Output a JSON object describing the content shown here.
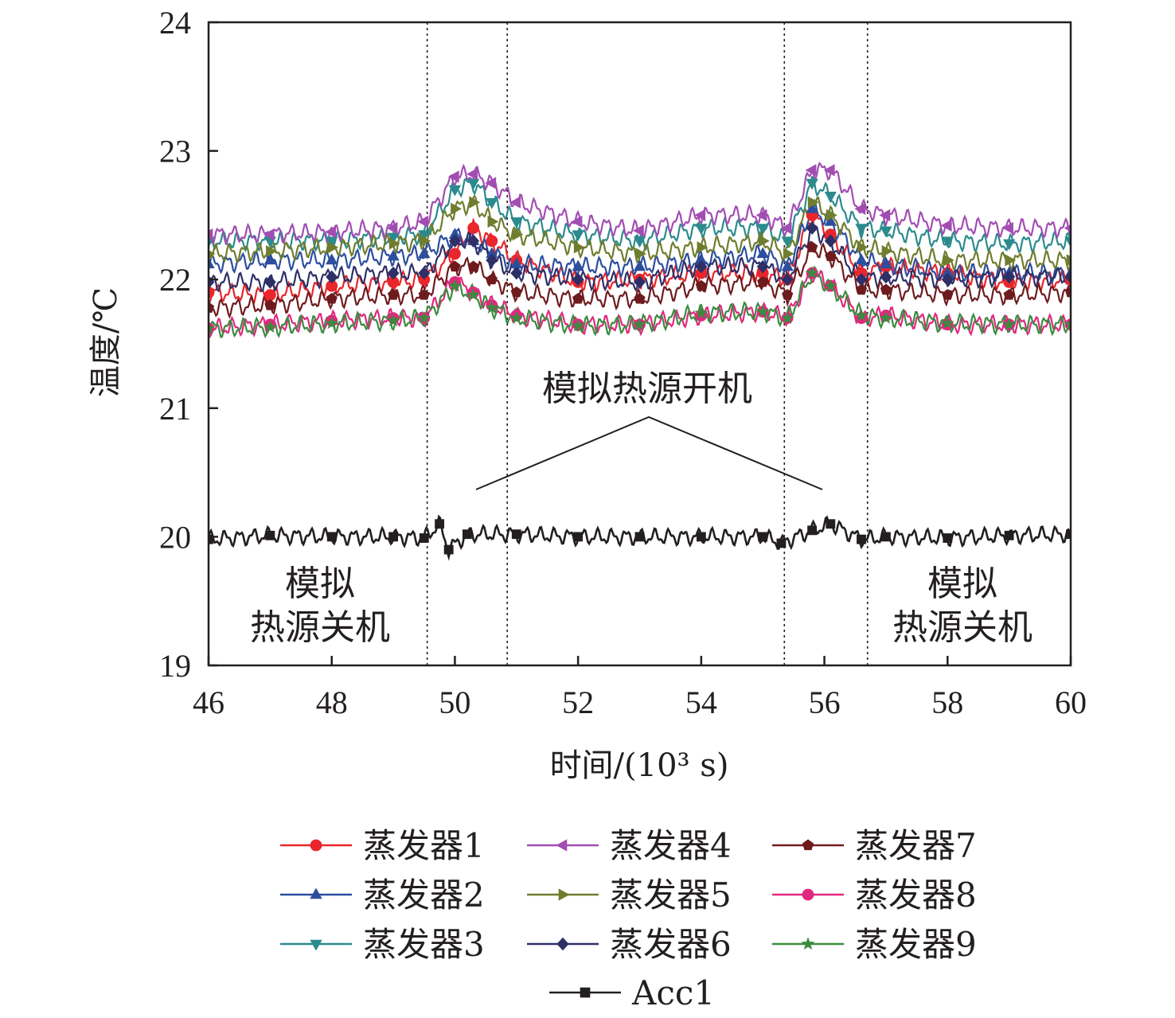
{
  "chart_data": {
    "type": "line",
    "title": "",
    "xlabel": "时间/(10³ s)",
    "ylabel": "温度/℃",
    "xlim": [
      46,
      60
    ],
    "ylim": [
      19,
      24
    ],
    "xticks": [
      46,
      48,
      50,
      52,
      54,
      56,
      58,
      60
    ],
    "yticks": [
      19,
      20,
      21,
      22,
      23,
      24
    ],
    "grid": false,
    "legend_position": "bottom",
    "vlines": [
      49.55,
      50.85,
      55.35,
      56.7
    ],
    "annotations": {
      "on": "模拟热源开机",
      "off_left": [
        "模拟",
        "热源关机"
      ],
      "off_right": [
        "模拟",
        "热源关机"
      ]
    },
    "series": [
      {
        "name": "蒸发器1",
        "color": "#e8262b",
        "marker": "circle",
        "points": [
          [
            46,
            21.9
          ],
          [
            47,
            21.88
          ],
          [
            48,
            21.95
          ],
          [
            49,
            21.98
          ],
          [
            49.5,
            22.0
          ],
          [
            50.0,
            22.2
          ],
          [
            50.3,
            22.4
          ],
          [
            50.6,
            22.3
          ],
          [
            51,
            22.15
          ],
          [
            52,
            21.98
          ],
          [
            53,
            22.0
          ],
          [
            54,
            22.05
          ],
          [
            55,
            22.05
          ],
          [
            55.4,
            22.0
          ],
          [
            55.8,
            22.5
          ],
          [
            56.1,
            22.35
          ],
          [
            56.6,
            22.05
          ],
          [
            57,
            22.1
          ],
          [
            58,
            22.05
          ],
          [
            59,
            21.98
          ],
          [
            60,
            22.0
          ]
        ]
      },
      {
        "name": "蒸发器2",
        "color": "#2c4e9e",
        "marker": "triangle-up",
        "points": [
          [
            46,
            22.12
          ],
          [
            47,
            22.15
          ],
          [
            48,
            22.15
          ],
          [
            49,
            22.18
          ],
          [
            49.5,
            22.2
          ],
          [
            50.0,
            22.35
          ],
          [
            50.3,
            22.3
          ],
          [
            50.6,
            22.2
          ],
          [
            51,
            22.12
          ],
          [
            52,
            22.1
          ],
          [
            53,
            22.1
          ],
          [
            54,
            22.15
          ],
          [
            55,
            22.2
          ],
          [
            55.4,
            22.1
          ],
          [
            55.8,
            22.55
          ],
          [
            56.1,
            22.45
          ],
          [
            56.6,
            22.15
          ],
          [
            57,
            22.12
          ],
          [
            58,
            22.05
          ],
          [
            59,
            22.05
          ],
          [
            60,
            22.05
          ]
        ]
      },
      {
        "name": "蒸发器3",
        "color": "#2b8a8d",
        "marker": "triangle-down",
        "points": [
          [
            46,
            22.3
          ],
          [
            47,
            22.3
          ],
          [
            48,
            22.3
          ],
          [
            49,
            22.33
          ],
          [
            49.5,
            22.35
          ],
          [
            50.0,
            22.7
          ],
          [
            50.3,
            22.75
          ],
          [
            50.6,
            22.6
          ],
          [
            51,
            22.45
          ],
          [
            52,
            22.35
          ],
          [
            53,
            22.3
          ],
          [
            54,
            22.4
          ],
          [
            55,
            22.4
          ],
          [
            55.4,
            22.3
          ],
          [
            55.8,
            22.75
          ],
          [
            56.1,
            22.65
          ],
          [
            56.6,
            22.4
          ],
          [
            57,
            22.38
          ],
          [
            58,
            22.3
          ],
          [
            59,
            22.28
          ],
          [
            60,
            22.3
          ]
        ]
      },
      {
        "name": "蒸发器4",
        "color": "#a24db2",
        "marker": "triangle-left",
        "points": [
          [
            46,
            22.35
          ],
          [
            47,
            22.35
          ],
          [
            48,
            22.37
          ],
          [
            49,
            22.4
          ],
          [
            49.5,
            22.45
          ],
          [
            50.0,
            22.8
          ],
          [
            50.3,
            22.82
          ],
          [
            50.6,
            22.75
          ],
          [
            51,
            22.6
          ],
          [
            52,
            22.45
          ],
          [
            53,
            22.38
          ],
          [
            54,
            22.5
          ],
          [
            55,
            22.5
          ],
          [
            55.4,
            22.4
          ],
          [
            55.8,
            22.85
          ],
          [
            56.1,
            22.85
          ],
          [
            56.6,
            22.55
          ],
          [
            57,
            22.5
          ],
          [
            58,
            22.42
          ],
          [
            59,
            22.4
          ],
          [
            60,
            22.4
          ]
        ]
      },
      {
        "name": "蒸发器5",
        "color": "#6f7d2e",
        "marker": "triangle-right",
        "points": [
          [
            46,
            22.2
          ],
          [
            47,
            22.22
          ],
          [
            48,
            22.25
          ],
          [
            49,
            22.28
          ],
          [
            49.5,
            22.3
          ],
          [
            50.0,
            22.55
          ],
          [
            50.3,
            22.6
          ],
          [
            50.6,
            22.45
          ],
          [
            51,
            22.35
          ],
          [
            52,
            22.25
          ],
          [
            53,
            22.2
          ],
          [
            54,
            22.25
          ],
          [
            55,
            22.3
          ],
          [
            55.4,
            22.2
          ],
          [
            55.8,
            22.6
          ],
          [
            56.1,
            22.5
          ],
          [
            56.6,
            22.25
          ],
          [
            57,
            22.22
          ],
          [
            58,
            22.15
          ],
          [
            59,
            22.15
          ],
          [
            60,
            22.15
          ]
        ]
      },
      {
        "name": "蒸发器6",
        "color": "#2e2f67",
        "marker": "diamond",
        "points": [
          [
            46,
            21.98
          ],
          [
            47,
            21.98
          ],
          [
            48,
            22.02
          ],
          [
            49,
            22.05
          ],
          [
            49.5,
            22.05
          ],
          [
            50.0,
            22.3
          ],
          [
            50.3,
            22.3
          ],
          [
            50.6,
            22.15
          ],
          [
            51,
            22.05
          ],
          [
            52,
            22.0
          ],
          [
            53,
            21.98
          ],
          [
            54,
            22.1
          ],
          [
            55,
            22.1
          ],
          [
            55.4,
            22.0
          ],
          [
            55.8,
            22.4
          ],
          [
            56.1,
            22.3
          ],
          [
            56.6,
            22.0
          ],
          [
            57,
            22.02
          ],
          [
            58,
            22.0
          ],
          [
            59,
            22.02
          ],
          [
            60,
            22.02
          ]
        ]
      },
      {
        "name": "蒸发器7",
        "color": "#6e1b1e",
        "marker": "pentagon",
        "points": [
          [
            46,
            21.78
          ],
          [
            47,
            21.8
          ],
          [
            48,
            21.85
          ],
          [
            49,
            21.88
          ],
          [
            49.5,
            21.88
          ],
          [
            50.0,
            22.1
          ],
          [
            50.3,
            22.1
          ],
          [
            50.6,
            22.0
          ],
          [
            51,
            21.9
          ],
          [
            52,
            21.85
          ],
          [
            53,
            21.85
          ],
          [
            54,
            21.95
          ],
          [
            55,
            21.98
          ],
          [
            55.4,
            21.88
          ],
          [
            55.8,
            22.25
          ],
          [
            56.1,
            22.18
          ],
          [
            56.6,
            21.92
          ],
          [
            57,
            21.92
          ],
          [
            58,
            21.88
          ],
          [
            59,
            21.88
          ],
          [
            60,
            21.9
          ]
        ]
      },
      {
        "name": "蒸发器8",
        "color": "#e0287e",
        "marker": "circle",
        "points": [
          [
            46,
            21.62
          ],
          [
            47,
            21.65
          ],
          [
            48,
            21.68
          ],
          [
            49,
            21.7
          ],
          [
            49.5,
            21.7
          ],
          [
            50.0,
            21.98
          ],
          [
            50.3,
            21.9
          ],
          [
            50.6,
            21.8
          ],
          [
            51,
            21.72
          ],
          [
            52,
            21.65
          ],
          [
            53,
            21.65
          ],
          [
            54,
            21.72
          ],
          [
            55,
            21.75
          ],
          [
            55.4,
            21.7
          ],
          [
            55.8,
            22.05
          ],
          [
            56.1,
            21.95
          ],
          [
            56.6,
            21.7
          ],
          [
            57,
            21.72
          ],
          [
            58,
            21.65
          ],
          [
            59,
            21.65
          ],
          [
            60,
            21.65
          ]
        ]
      },
      {
        "name": "蒸发器9",
        "color": "#3a8b3f",
        "marker": "star",
        "points": [
          [
            46,
            21.62
          ],
          [
            47,
            21.63
          ],
          [
            48,
            21.66
          ],
          [
            49,
            21.68
          ],
          [
            49.5,
            21.7
          ],
          [
            50.0,
            21.95
          ],
          [
            50.3,
            21.88
          ],
          [
            50.6,
            21.78
          ],
          [
            51,
            21.7
          ],
          [
            52,
            21.64
          ],
          [
            53,
            21.65
          ],
          [
            54,
            21.74
          ],
          [
            55,
            21.75
          ],
          [
            55.4,
            21.7
          ],
          [
            55.8,
            22.05
          ],
          [
            56.1,
            21.95
          ],
          [
            56.6,
            21.72
          ],
          [
            57,
            21.7
          ],
          [
            58,
            21.66
          ],
          [
            59,
            21.65
          ],
          [
            60,
            21.65
          ]
        ]
      },
      {
        "name": "Acc1",
        "color": "#231f20",
        "marker": "square",
        "points": [
          [
            46,
            19.98
          ],
          [
            47,
            20.01
          ],
          [
            48,
            20.0
          ],
          [
            49,
            20.0
          ],
          [
            49.5,
            19.99
          ],
          [
            49.75,
            20.1
          ],
          [
            49.9,
            19.9
          ],
          [
            50.2,
            20.02
          ],
          [
            51,
            20.02
          ],
          [
            52,
            20.0
          ],
          [
            53,
            20.0
          ],
          [
            54,
            20.0
          ],
          [
            55,
            20.0
          ],
          [
            55.3,
            19.95
          ],
          [
            55.8,
            20.05
          ],
          [
            56.1,
            20.1
          ],
          [
            56.6,
            19.98
          ],
          [
            57,
            20.0
          ],
          [
            58,
            19.99
          ],
          [
            59,
            20.01
          ],
          [
            60,
            20.02
          ]
        ]
      }
    ]
  }
}
